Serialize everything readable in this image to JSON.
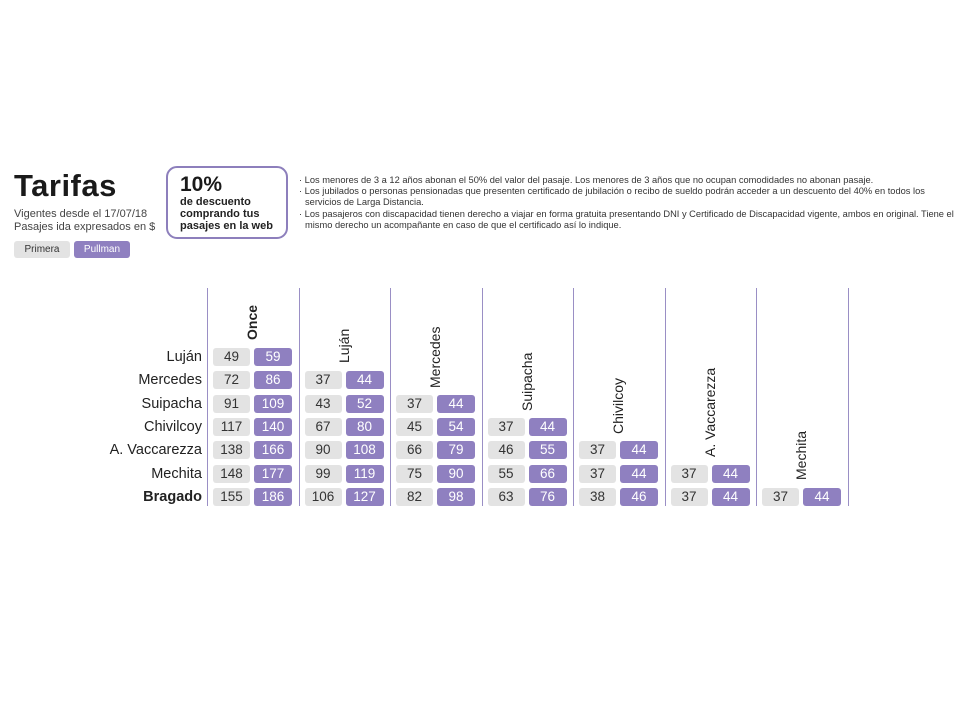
{
  "header": {
    "title": "Tarifas",
    "subtitle_1": "Vigentes desde el 17/07/18",
    "subtitle_2": "Pasajes ida expresados en $"
  },
  "legend": {
    "primera": "Primera",
    "pullman": "Pullman"
  },
  "promo": {
    "percent": "10%",
    "line_1": "de descuento",
    "line_2": "comprando tus",
    "line_3": "pasajes en la web"
  },
  "notes": [
    "· Los menores de 3 a 12 años abonan el 50% del valor del pasaje. Los menores de 3 años que no ocupan comodidades no abonan pasaje.",
    "· Los jubilados o personas pensionadas que presenten certificado de jubilación o recibo de sueldo podrán acceder a un descuento del 40% en todos los servicios de Larga Distancia.",
    "· Los pasajeros con discapacidad tienen derecho a viajar en forma gratuita presentando DNI y Certificado de Discapacidad vigente, ambos en original. Tiene el mismo derecho un acompañante en caso de que el certificado así lo indique."
  ],
  "colors": {
    "primera": "#e3e3e3",
    "pullman": "#8f80c0",
    "divider": "#9a8fc5"
  },
  "table": {
    "columns": [
      "Once",
      "Luján",
      "Mercedes",
      "Suipacha",
      "Chivilcoy",
      "A. Vaccarezza",
      "Mechita"
    ],
    "rows": [
      {
        "label": "Luján",
        "primera": [
          49
        ],
        "pullman": [
          59
        ]
      },
      {
        "label": "Mercedes",
        "primera": [
          72,
          37
        ],
        "pullman": [
          86,
          44
        ]
      },
      {
        "label": "Suipacha",
        "primera": [
          91,
          43,
          37
        ],
        "pullman": [
          109,
          52,
          44
        ]
      },
      {
        "label": "Chivilcoy",
        "primera": [
          117,
          67,
          45,
          37
        ],
        "pullman": [
          140,
          80,
          54,
          44
        ]
      },
      {
        "label": "A. Vaccarezza",
        "primera": [
          138,
          90,
          66,
          46,
          37
        ],
        "pullman": [
          166,
          108,
          79,
          55,
          44
        ]
      },
      {
        "label": "Mechita",
        "primera": [
          148,
          99,
          75,
          55,
          37,
          37
        ],
        "pullman": [
          177,
          119,
          90,
          66,
          44,
          44
        ]
      },
      {
        "label": "Bragado",
        "primera": [
          155,
          106,
          82,
          63,
          38,
          37,
          37
        ],
        "pullman": [
          186,
          127,
          98,
          76,
          46,
          44,
          44
        ]
      }
    ]
  }
}
